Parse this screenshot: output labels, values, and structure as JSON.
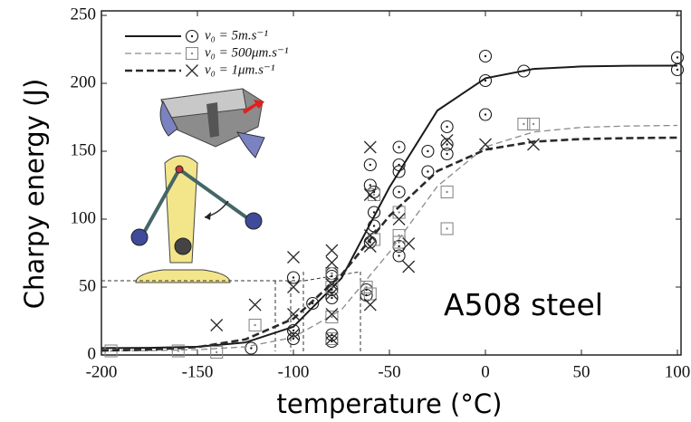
{
  "chart_data": {
    "type": "line_scatter",
    "xlabel": "temperature (°C)",
    "ylabel": "Charpy energy (J)",
    "annotation": "A508 steel",
    "xlim": [
      -200,
      100
    ],
    "ylim": [
      0,
      250
    ],
    "xticks": [
      -200,
      -150,
      -100,
      -50,
      0,
      50,
      100
    ],
    "yticks": [
      0,
      50,
      100,
      150,
      200,
      250
    ],
    "series": [
      {
        "name": "v₀ = 5m.s⁻¹",
        "color": "#1a1a1a",
        "line_style": "solid",
        "marker": "circle-dot",
        "line": {
          "x": [
            -200,
            -175,
            -150,
            -125,
            -100,
            -75,
            -50,
            -25,
            0,
            25,
            50,
            75,
            100
          ],
          "values": [
            5.1,
            5.3,
            6.1,
            9.2,
            20.8,
            56.5,
            123.4,
            180,
            203.7,
            210.6,
            212.4,
            212.9,
            213
          ]
        },
        "points": {
          "x": [
            -122,
            -100,
            -100,
            -100,
            -90,
            -80,
            -80,
            -80,
            -80,
            -80,
            -80,
            -62,
            -62,
            -60,
            -60,
            -60,
            -58,
            -58,
            -58,
            -45,
            -45,
            -45,
            -45,
            -45,
            -45,
            -30,
            -30,
            -20,
            -20,
            -20,
            0,
            0,
            0,
            20,
            100,
            100
          ],
          "values": [
            5,
            12,
            18,
            57,
            38,
            42,
            48,
            58,
            60,
            15,
            10,
            48,
            44,
            125,
            140,
            83,
            120,
            95,
            105,
            153,
            140,
            135,
            120,
            73,
            80,
            150,
            135,
            168,
            155,
            148,
            220,
            202,
            177,
            209,
            219,
            210
          ]
        }
      },
      {
        "name": "v₀ = 500μm.s⁻¹",
        "color": "#8a8a8a",
        "line_style": "dashed",
        "marker": "square-dot",
        "line": {
          "x": [
            -200,
            -175,
            -150,
            -125,
            -100,
            -75,
            -50,
            -25,
            0,
            25,
            50,
            75,
            100
          ],
          "values": [
            3.1,
            3.2,
            3.9,
            6,
            13,
            33.3,
            75.7,
            124.3,
            153.2,
            164.1,
            167.6,
            168.6,
            169
          ]
        },
        "points": {
          "x": [
            -195,
            -160,
            -140,
            -120,
            -80,
            -80,
            -80,
            -80,
            -62,
            -60,
            -58,
            -58,
            -45,
            -45,
            -45,
            -20,
            -20,
            20,
            25
          ],
          "values": [
            3,
            3,
            2,
            22,
            60,
            50,
            28,
            12,
            50,
            45,
            85,
            118,
            105,
            88,
            83,
            120,
            93,
            170,
            170
          ]
        }
      },
      {
        "name": "v₀ = 1μm.s⁻¹",
        "color": "#2a2a2a",
        "line_style": "thick-dashed",
        "marker": "cross",
        "line": {
          "x": [
            -200,
            -175,
            -150,
            -125,
            -100,
            -75,
            -50,
            -25,
            0,
            25,
            50,
            75,
            100
          ],
          "values": [
            3.3,
            3.9,
            5.8,
            11.5,
            26.7,
            59,
            102.4,
            135.4,
            151.2,
            157,
            159,
            159.7,
            160
          ]
        },
        "points": {
          "x": [
            -140,
            -120,
            -100,
            -100,
            -100,
            -100,
            -80,
            -80,
            -80,
            -80,
            -80,
            -80,
            -60,
            -60,
            -60,
            -60,
            -60,
            -45,
            -40,
            -40,
            -20,
            0,
            25
          ],
          "values": [
            22,
            37,
            72,
            50,
            30,
            15,
            77,
            68,
            52,
            45,
            30,
            12,
            153,
            118,
            88,
            80,
            37,
            100,
            65,
            82,
            158,
            155,
            155
          ]
        }
      }
    ]
  }
}
